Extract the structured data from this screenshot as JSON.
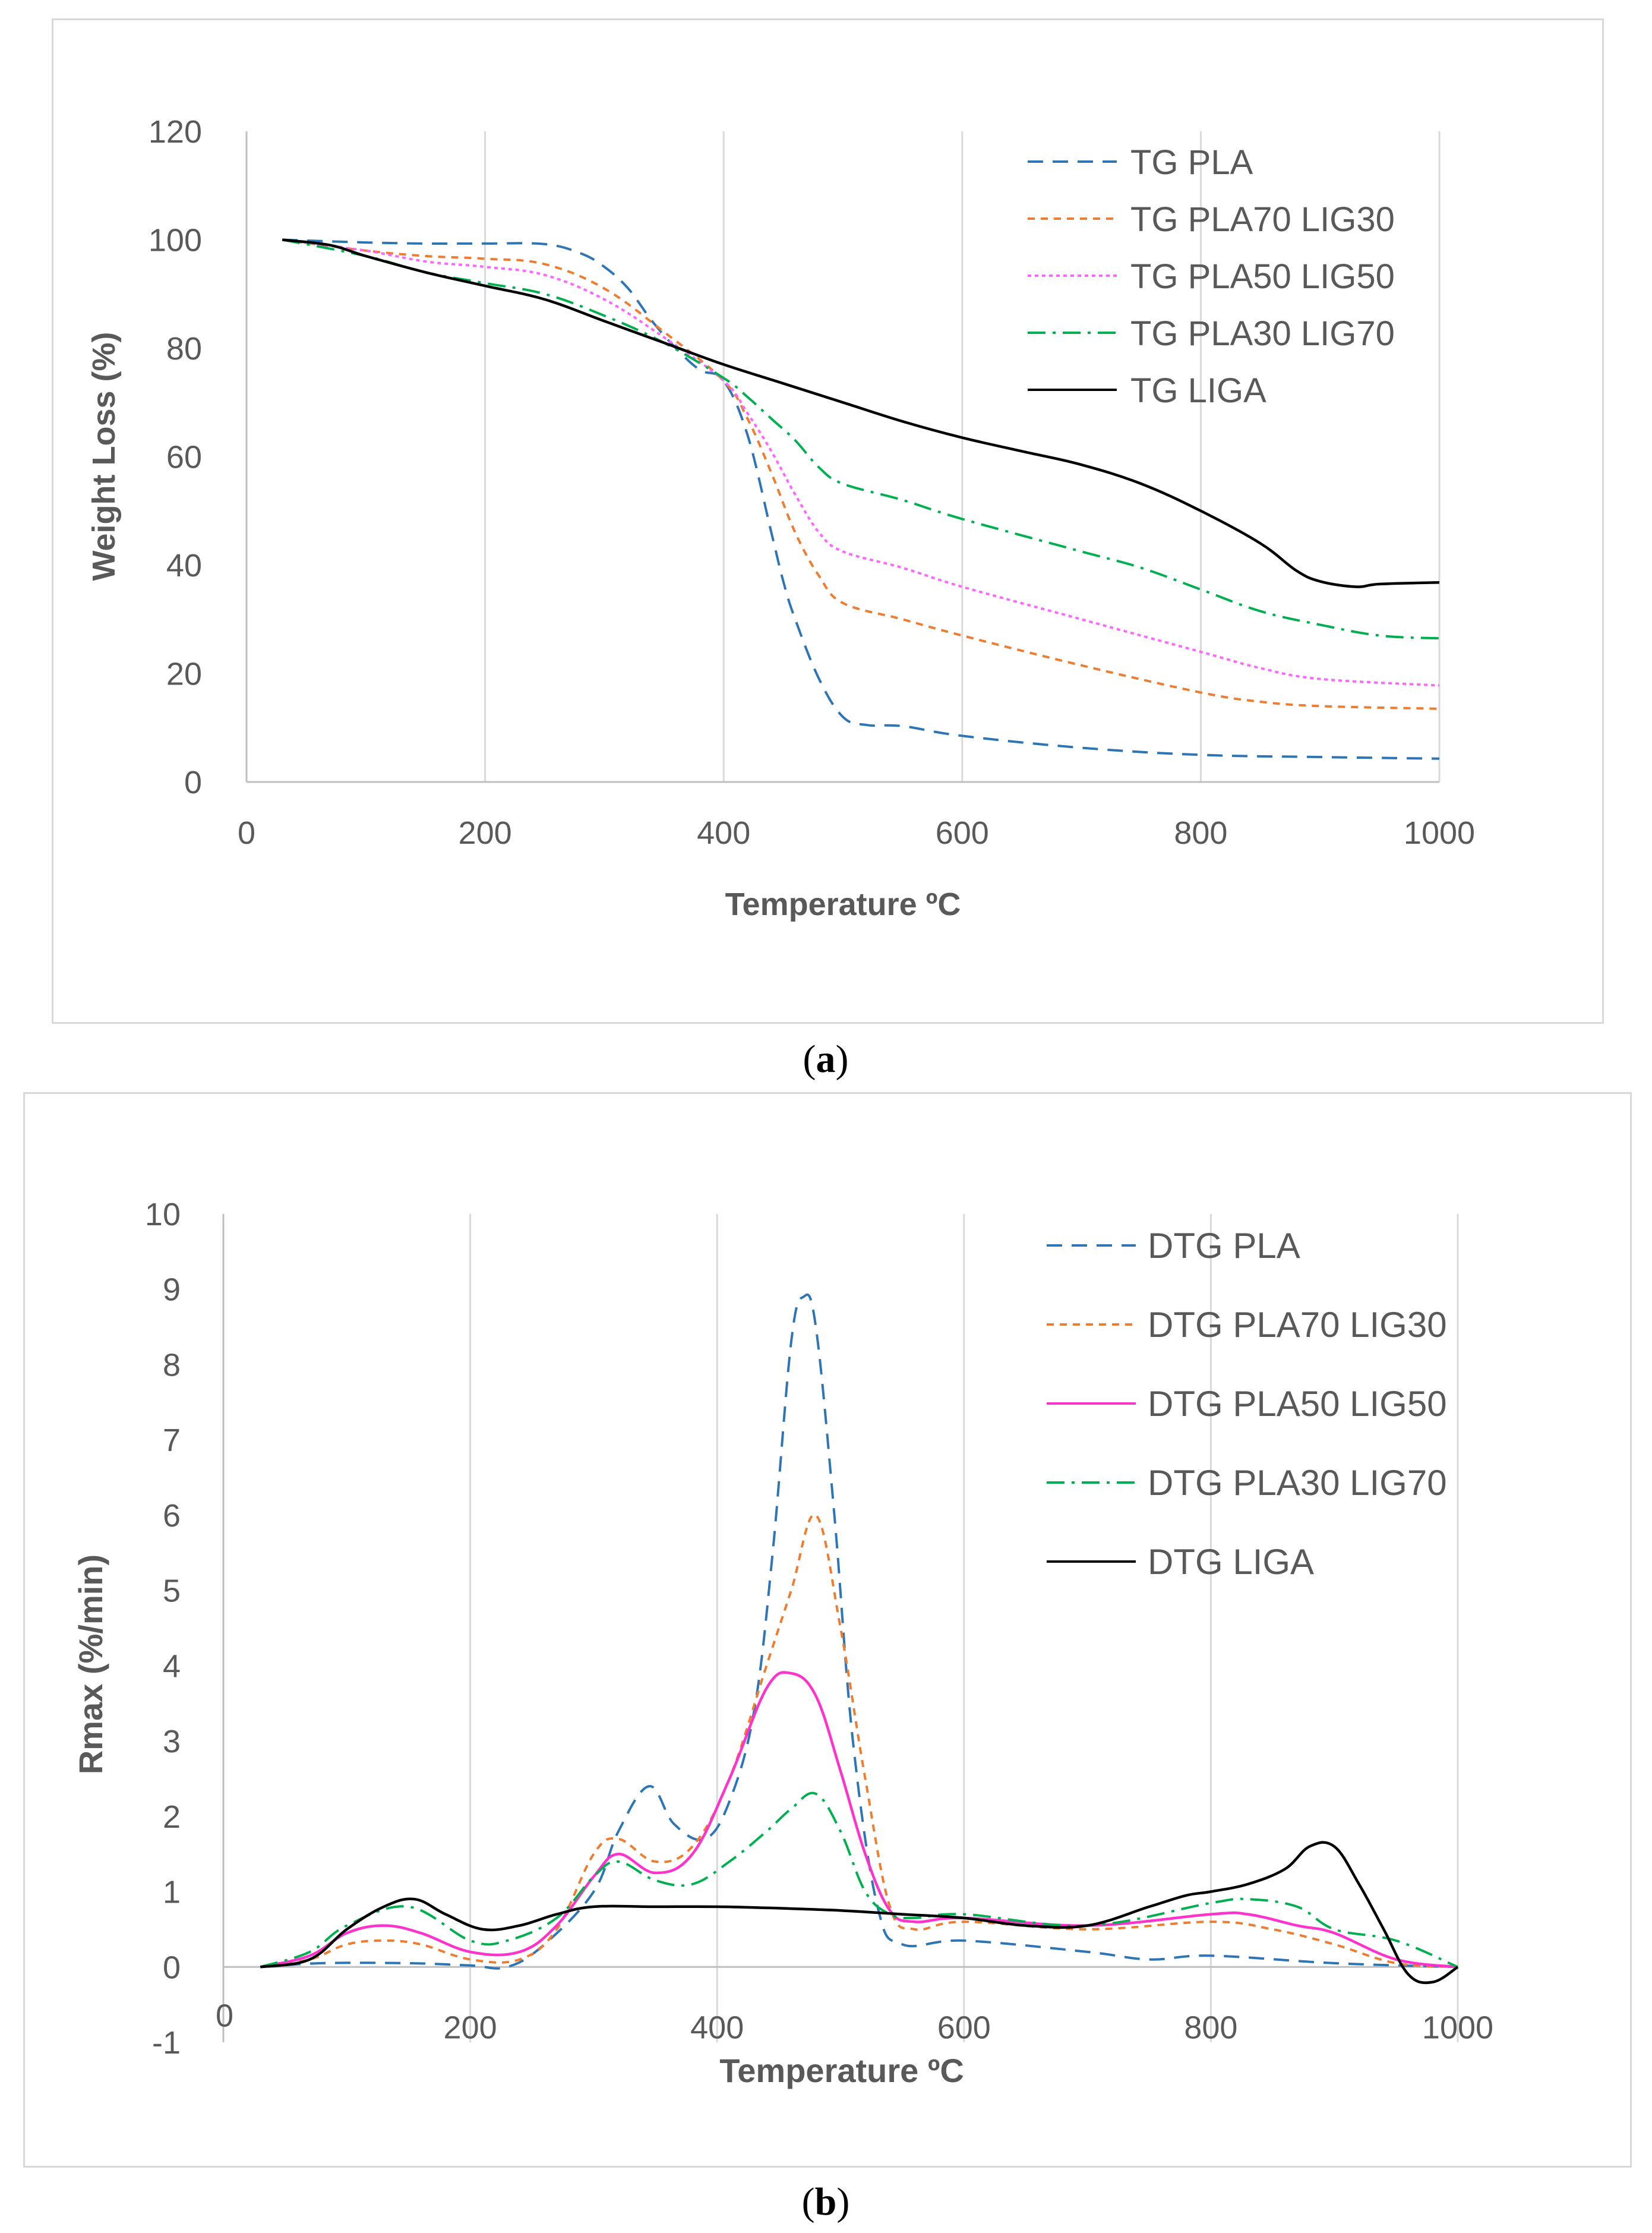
{
  "captions": {
    "a": "(a)",
    "b": "(b)"
  },
  "chart_data": [
    {
      "type": "line",
      "id": "a",
      "title": "",
      "xlabel": "Temperature ºC",
      "ylabel": "Weight Loss (%)",
      "xlim": [
        0,
        1000
      ],
      "ylim": [
        0,
        120
      ],
      "xticks": [
        0,
        200,
        400,
        600,
        800,
        1000
      ],
      "yticks": [
        0,
        20,
        40,
        60,
        80,
        100,
        120
      ],
      "grid": "vertical",
      "legend_position": "top-right",
      "series": [
        {
          "name": "TG PLA",
          "color": "#2e75b6",
          "dash": "dash",
          "x": [
            30,
            100,
            150,
            200,
            250,
            280,
            300,
            320,
            340,
            360,
            380,
            400,
            420,
            440,
            450,
            460,
            480,
            500,
            520,
            550,
            600,
            700,
            800,
            900,
            1000
          ],
          "y": [
            100,
            99.5,
            99.3,
            99.3,
            99.2,
            97.5,
            95,
            91,
            85,
            80,
            76,
            74,
            64,
            46,
            37,
            30,
            19,
            12,
            10.5,
            10.3,
            8.5,
            6.3,
            5,
            4.6,
            4.3
          ]
        },
        {
          "name": "TG PLA70 LIG30",
          "color": "#ed7d31",
          "dash": "short",
          "x": [
            30,
            100,
            150,
            200,
            250,
            300,
            350,
            400,
            420,
            440,
            460,
            480,
            500,
            550,
            600,
            700,
            800,
            850,
            900,
            1000
          ],
          "y": [
            100,
            98,
            97,
            96.5,
            95.5,
            91,
            83,
            74,
            67,
            57,
            46,
            38,
            33,
            30,
            27,
            21.5,
            16.5,
            14.8,
            14,
            13.5
          ]
        },
        {
          "name": "TG PLA50 LIG50",
          "color": "#ff66ff",
          "dash": "dot",
          "x": [
            30,
            100,
            150,
            200,
            250,
            300,
            350,
            400,
            420,
            440,
            460,
            480,
            500,
            550,
            600,
            700,
            800,
            850,
            900,
            1000
          ],
          "y": [
            100,
            98,
            96,
            95,
            93.5,
            89,
            82,
            74,
            68,
            61,
            53,
            46,
            42.5,
            39.5,
            36,
            30,
            24,
            21,
            19,
            17.8
          ]
        },
        {
          "name": "TG PLA30 LIG70",
          "color": "#00b050",
          "dash": "dashdot",
          "x": [
            30,
            100,
            150,
            200,
            250,
            300,
            350,
            400,
            420,
            440,
            460,
            480,
            500,
            550,
            600,
            700,
            750,
            800,
            850,
            900,
            950,
            1000
          ],
          "y": [
            100,
            97,
            94,
            92,
            90,
            86,
            81,
            74.5,
            71,
            67,
            63,
            58,
            55,
            52,
            48.5,
            42.5,
            39.5,
            35.5,
            31.5,
            29,
            27,
            26.5
          ]
        },
        {
          "name": "TG LIGA",
          "color": "#000000",
          "dash": "solid",
          "x": [
            30,
            70,
            100,
            150,
            200,
            250,
            300,
            350,
            400,
            450,
            500,
            550,
            600,
            650,
            700,
            750,
            800,
            850,
            880,
            900,
            930,
            950,
            1000
          ],
          "y": [
            100,
            99,
            97,
            94,
            91.5,
            89,
            85,
            81,
            77,
            73.5,
            70,
            66.5,
            63.5,
            61,
            58.5,
            55,
            50,
            44,
            39,
            37,
            36,
            36.5,
            36.8
          ]
        }
      ]
    },
    {
      "type": "line",
      "id": "b",
      "title": "",
      "xlabel": "Temperature ºC",
      "ylabel": "Rmax (%/min)",
      "xlim": [
        0,
        1000
      ],
      "ylim": [
        -1,
        10
      ],
      "xticks": [
        0,
        200,
        400,
        600,
        800,
        1000
      ],
      "yticks": [
        -1,
        0,
        1,
        2,
        3,
        4,
        5,
        6,
        7,
        8,
        9,
        10
      ],
      "grid": "vertical",
      "legend_position": "top-right",
      "series": [
        {
          "name": "DTG PLA",
          "color": "#2e75b6",
          "dash": "dash",
          "x": [
            30,
            80,
            150,
            200,
            230,
            260,
            300,
            320,
            345,
            365,
            390,
            410,
            430,
            445,
            460,
            470,
            480,
            495,
            510,
            530,
            550,
            600,
            700,
            750,
            800,
            900,
            1000
          ],
          "y": [
            0,
            0.05,
            0.05,
            0.02,
            0,
            0.3,
            1.0,
            1.8,
            2.4,
            1.9,
            1.7,
            2.2,
            3.4,
            5.5,
            8.3,
            8.9,
            8.5,
            6,
            3,
            0.8,
            0.3,
            0.35,
            0.2,
            0.1,
            0.15,
            0.05,
            0
          ]
        },
        {
          "name": "DTG PLA70 LIG30",
          "color": "#ed7d31",
          "dash": "short",
          "x": [
            30,
            70,
            100,
            130,
            160,
            200,
            240,
            270,
            300,
            320,
            350,
            380,
            410,
            440,
            460,
            480,
            500,
            520,
            540,
            560,
            600,
            700,
            800,
            850,
            900,
            950,
            1000
          ],
          "y": [
            0,
            0.1,
            0.3,
            0.35,
            0.3,
            0.1,
            0.1,
            0.5,
            1.5,
            1.7,
            1.4,
            1.6,
            2.5,
            4.0,
            5.0,
            6.0,
            4.5,
            2.5,
            0.8,
            0.5,
            0.6,
            0.5,
            0.6,
            0.5,
            0.3,
            0.05,
            0
          ]
        },
        {
          "name": "DTG PLA50 LIG50",
          "color": "#ff33cc",
          "dash": "solid",
          "x": [
            30,
            70,
            100,
            130,
            160,
            200,
            240,
            270,
            300,
            320,
            350,
            380,
            410,
            440,
            460,
            480,
            500,
            520,
            540,
            560,
            600,
            700,
            800,
            830,
            870,
            900,
            950,
            1000
          ],
          "y": [
            0,
            0.15,
            0.45,
            0.55,
            0.45,
            0.2,
            0.2,
            0.55,
            1.2,
            1.5,
            1.25,
            1.5,
            2.5,
            3.7,
            3.9,
            3.6,
            2.6,
            1.5,
            0.75,
            0.6,
            0.65,
            0.55,
            0.7,
            0.7,
            0.55,
            0.45,
            0.1,
            0
          ]
        },
        {
          "name": "DTG PLA30 LIG70",
          "color": "#00b050",
          "dash": "dashdot",
          "x": [
            30,
            70,
            100,
            150,
            200,
            230,
            270,
            300,
            320,
            350,
            380,
            410,
            440,
            460,
            480,
            500,
            520,
            540,
            560,
            600,
            700,
            800,
            830,
            870,
            900,
            950,
            1000
          ],
          "y": [
            0,
            0.2,
            0.55,
            0.8,
            0.35,
            0.35,
            0.65,
            1.2,
            1.4,
            1.15,
            1.1,
            1.4,
            1.8,
            2.1,
            2.3,
            1.8,
            1.0,
            0.7,
            0.65,
            0.7,
            0.55,
            0.85,
            0.9,
            0.8,
            0.5,
            0.35,
            0
          ]
        },
        {
          "name": "DTG LIGA",
          "color": "#000000",
          "dash": "solid",
          "x": [
            30,
            70,
            100,
            130,
            155,
            180,
            210,
            240,
            270,
            300,
            350,
            400,
            450,
            500,
            550,
            600,
            650,
            700,
            750,
            780,
            800,
            830,
            860,
            880,
            900,
            920,
            940,
            960,
            980,
            1000
          ],
          "y": [
            0,
            0.1,
            0.5,
            0.8,
            0.9,
            0.7,
            0.5,
            0.55,
            0.7,
            0.8,
            0.8,
            0.8,
            0.78,
            0.75,
            0.7,
            0.65,
            0.55,
            0.55,
            0.8,
            0.95,
            1.0,
            1.1,
            1.3,
            1.6,
            1.6,
            1.1,
            0.5,
            -0.1,
            -0.2,
            0
          ]
        }
      ]
    }
  ]
}
